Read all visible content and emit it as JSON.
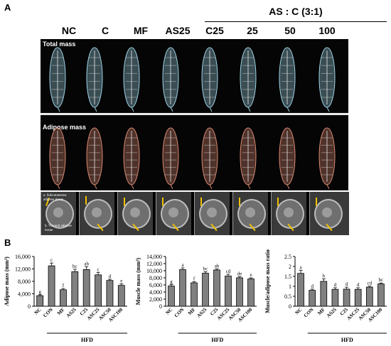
{
  "panel_a_letter": "A",
  "panel_b_letter": "B",
  "group_headers": [
    "NC",
    "C",
    "MF",
    "AS25",
    "C25",
    "25",
    "50",
    "100"
  ],
  "as_header": "AS : C (3:1)",
  "strip_titles": {
    "total": "Total mass",
    "adipose": "Adipose mass"
  },
  "scan_labels": {
    "a": "a. Subcutaneous adipose tissue",
    "b": "b. Visceral adipose tissue"
  },
  "colors": {
    "bar": "#808080",
    "total_tint": "#9fd3e6",
    "adipose_tint": "#d98a72"
  },
  "hfd_label": "HFD",
  "chart_data": [
    {
      "type": "bar",
      "ylabel": "Adipose mass (mm³)",
      "categories": [
        "NC",
        "CON",
        "MF",
        "AS25",
        "C25",
        "ASC25",
        "ASC50",
        "ASC100"
      ],
      "values": [
        3400,
        13000,
        5300,
        11100,
        11800,
        10100,
        8300,
        6700
      ],
      "errors": [
        300,
        900,
        400,
        800,
        900,
        800,
        400,
        500
      ],
      "letters": [
        "g",
        "c",
        "f",
        "bc",
        "ab",
        "c",
        "d",
        "e"
      ],
      "ylim": [
        0,
        16000
      ],
      "yticks": [
        "0",
        "4,000",
        "8,000",
        "12,000",
        "16,000"
      ],
      "group_label": "HFD"
    },
    {
      "type": "bar",
      "ylabel": "Muscle mass (mm³)",
      "categories": [
        "NC",
        "CON",
        "MF",
        "AS25",
        "C25",
        "ASC25",
        "ASC50",
        "ASC100"
      ],
      "values": [
        5700,
        10300,
        6600,
        9300,
        10200,
        8500,
        8000,
        7700
      ],
      "errors": [
        400,
        500,
        300,
        400,
        300,
        500,
        300,
        300
      ],
      "letters": [
        "g",
        "a",
        "f",
        "bc",
        "ab",
        "cd",
        "de",
        "e"
      ],
      "ylim": [
        0,
        14000
      ],
      "yticks": [
        "0",
        "2,000",
        "4,000",
        "6,000",
        "8,000",
        "10,000",
        "12,000",
        "14,000"
      ],
      "group_label": "HFD"
    },
    {
      "type": "bar",
      "ylabel": "Muscle/adipose mass ratio",
      "categories": [
        "NC",
        "CON",
        "MF",
        "AS25",
        "C25",
        "ASC25",
        "ASC50",
        "ASC100"
      ],
      "values": [
        1.65,
        0.8,
        1.25,
        0.85,
        0.86,
        0.85,
        0.96,
        1.12
      ],
      "errors": [
        0.15,
        0.06,
        0.12,
        0.08,
        0.1,
        0.08,
        0.05,
        0.05
      ],
      "letters": [
        "a",
        "d",
        "b",
        "d",
        "d",
        "d",
        "cd",
        "bc"
      ],
      "ylim": [
        0,
        2.5
      ],
      "yticks": [
        "0",
        "0.5",
        "1",
        "1.5",
        "2",
        "2.5"
      ],
      "group_label": "HFD"
    }
  ]
}
